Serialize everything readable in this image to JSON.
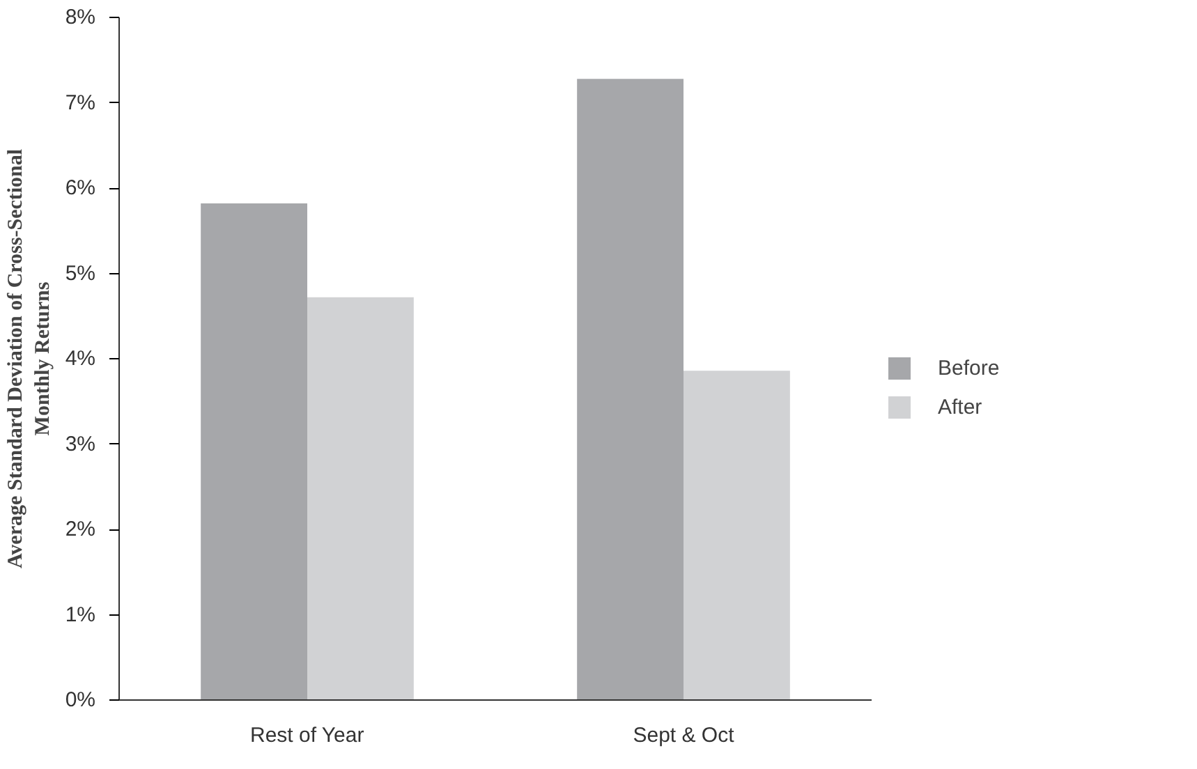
{
  "chart_data": {
    "type": "bar",
    "ylabel": "Average Standard Deviation of Cross-Sectional\nMonthly Returns",
    "categories": [
      "Rest of Year",
      "Sept & Oct"
    ],
    "series": [
      {
        "name": "Before",
        "color": "#a6a7aa",
        "values": [
          5.82,
          7.28
        ]
      },
      {
        "name": "After",
        "color": "#d1d2d4",
        "values": [
          4.72,
          3.86
        ]
      }
    ],
    "ylim": [
      0,
      8
    ],
    "yticks": [
      {
        "value": 0,
        "label": "0%"
      },
      {
        "value": 1,
        "label": "1%"
      },
      {
        "value": 2,
        "label": "2%"
      },
      {
        "value": 3,
        "label": "3%"
      },
      {
        "value": 4,
        "label": "4%"
      },
      {
        "value": 5,
        "label": "5%"
      },
      {
        "value": 6,
        "label": "6%"
      },
      {
        "value": 7,
        "label": "7%"
      },
      {
        "value": 8,
        "label": "8%"
      }
    ],
    "legend": "right",
    "grid": false
  }
}
